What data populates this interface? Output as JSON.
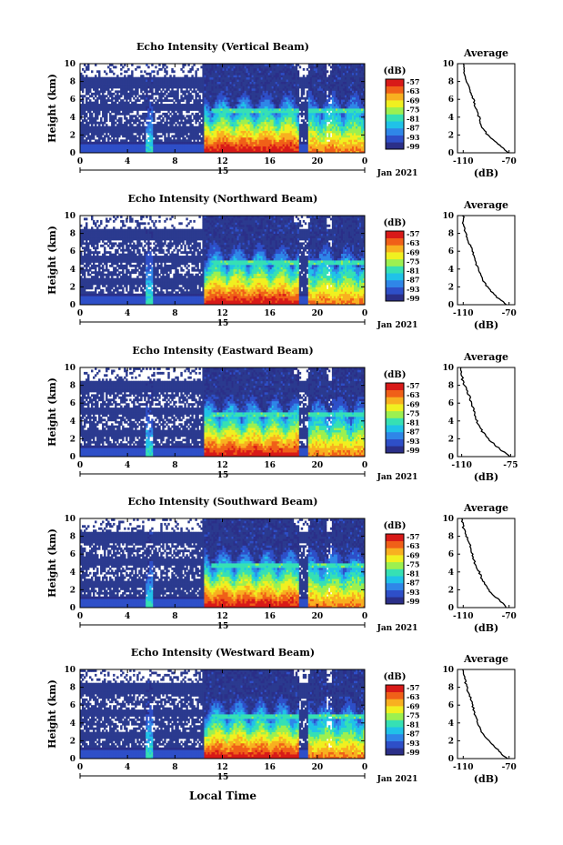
{
  "page": {
    "xlabel": "Local Time",
    "date_label": "Jan 2021",
    "day_label": "15",
    "colorbar_unit": "(dB)",
    "colorbar_ticks": [
      "-57",
      "-63",
      "-69",
      "-75",
      "-81",
      "-87",
      "-93",
      "-99"
    ],
    "colors": {
      "background_echo": "#2b3a8f",
      "missing": "#ffffff",
      "colormap": [
        "#2b2f88",
        "#2e4fc8",
        "#2f86e8",
        "#20c2e8",
        "#36e0b4",
        "#9cf050",
        "#f0f020",
        "#f8b020",
        "#f06018",
        "#d81a18"
      ]
    }
  },
  "chart_data": [
    {
      "type": "heatmap",
      "title": "Echo Intensity (Vertical Beam)",
      "ylabel": "Height (km)",
      "xlabel": "Local Time",
      "x_ticks": [
        "0",
        "4",
        "8",
        "12",
        "16",
        "20",
        "0"
      ],
      "y_ticks": [
        "0",
        "2",
        "4",
        "6",
        "8",
        "10"
      ],
      "xlim": [
        0,
        24
      ],
      "ylim": [
        0,
        10
      ],
      "colorbar": {
        "label": "(dB)",
        "range": [
          -99,
          -57
        ]
      },
      "profile": {
        "title": "Average",
        "xlabel": "(dB)",
        "x_ticks": [
          "-110",
          "-70"
        ],
        "xlim": [
          -115,
          -65
        ],
        "heights": [
          0,
          1,
          2,
          3,
          4,
          5,
          6,
          7,
          8,
          9,
          10
        ],
        "values": [
          -70,
          -80,
          -89,
          -94,
          -96,
          -99,
          -101,
          -104,
          -107,
          -109,
          -110
        ]
      }
    },
    {
      "type": "heatmap",
      "title": "Echo Intensity (Northward Beam)",
      "ylabel": "Height (km)",
      "xlabel": "Local Time",
      "x_ticks": [
        "0",
        "4",
        "8",
        "12",
        "16",
        "20",
        "0"
      ],
      "y_ticks": [
        "0",
        "2",
        "4",
        "6",
        "8",
        "10"
      ],
      "xlim": [
        0,
        24
      ],
      "ylim": [
        0,
        10
      ],
      "colorbar": {
        "label": "(dB)",
        "range": [
          -99,
          -57
        ]
      },
      "profile": {
        "title": "Average",
        "xlabel": "(dB)",
        "x_ticks": [
          "-110",
          "-70"
        ],
        "xlim": [
          -115,
          -65
        ],
        "heights": [
          0,
          1,
          2,
          3,
          4,
          5,
          6,
          7,
          8,
          9,
          10
        ],
        "values": [
          -72,
          -82,
          -89,
          -94,
          -97,
          -100,
          -102,
          -105,
          -108,
          -110,
          -110
        ]
      }
    },
    {
      "type": "heatmap",
      "title": "Echo Intensity (Eastward Beam)",
      "ylabel": "Height (km)",
      "xlabel": "Local Time",
      "x_ticks": [
        "0",
        "4",
        "8",
        "12",
        "16",
        "20",
        "0"
      ],
      "y_ticks": [
        "0",
        "2",
        "4",
        "6",
        "8",
        "10"
      ],
      "xlim": [
        0,
        24
      ],
      "ylim": [
        0,
        10
      ],
      "colorbar": {
        "label": "(dB)",
        "range": [
          -99,
          -57
        ]
      },
      "profile": {
        "title": "Average",
        "xlabel": "(dB)",
        "x_ticks": [
          "-110",
          "-75"
        ],
        "xlim": [
          -113,
          -72
        ],
        "heights": [
          0,
          1,
          2,
          3,
          4,
          5,
          6,
          7,
          8,
          9,
          10
        ],
        "values": [
          -75,
          -84,
          -91,
          -96,
          -99,
          -101,
          -103,
          -105,
          -108,
          -110,
          -110
        ]
      }
    },
    {
      "type": "heatmap",
      "title": "Echo Intensity (Southward Beam)",
      "ylabel": "Height (km)",
      "xlabel": "Local Time",
      "x_ticks": [
        "0",
        "4",
        "8",
        "12",
        "16",
        "20",
        "0"
      ],
      "y_ticks": [
        "0",
        "2",
        "4",
        "6",
        "8",
        "10"
      ],
      "xlim": [
        0,
        24
      ],
      "ylim": [
        0,
        10
      ],
      "colorbar": {
        "label": "(dB)",
        "range": [
          -99,
          -57
        ]
      },
      "profile": {
        "title": "Average",
        "xlabel": "(dB)",
        "x_ticks": [
          "-110",
          "-70"
        ],
        "xlim": [
          -115,
          -65
        ],
        "heights": [
          0,
          1,
          2,
          3,
          4,
          5,
          6,
          7,
          8,
          9,
          10
        ],
        "values": [
          -72,
          -80,
          -88,
          -93,
          -96,
          -100,
          -102,
          -104,
          -107,
          -110,
          -111
        ]
      }
    },
    {
      "type": "heatmap",
      "title": "Echo Intensity (Westward Beam)",
      "ylabel": "Height (km)",
      "xlabel": "Local Time",
      "x_ticks": [
        "0",
        "4",
        "8",
        "12",
        "16",
        "20",
        "0"
      ],
      "y_ticks": [
        "0",
        "2",
        "4",
        "6",
        "8",
        "10"
      ],
      "xlim": [
        0,
        24
      ],
      "ylim": [
        0,
        10
      ],
      "colorbar": {
        "label": "(dB)",
        "range": [
          -99,
          -57
        ]
      },
      "profile": {
        "title": "Average",
        "xlabel": "(dB)",
        "x_ticks": [
          "-110",
          "-70"
        ],
        "xlim": [
          -115,
          -65
        ],
        "heights": [
          0,
          1,
          2,
          3,
          4,
          5,
          6,
          7,
          8,
          9,
          10
        ],
        "values": [
          -72,
          -80,
          -88,
          -94,
          -97,
          -100,
          -102,
          -104,
          -107,
          -109,
          -110
        ]
      }
    }
  ]
}
